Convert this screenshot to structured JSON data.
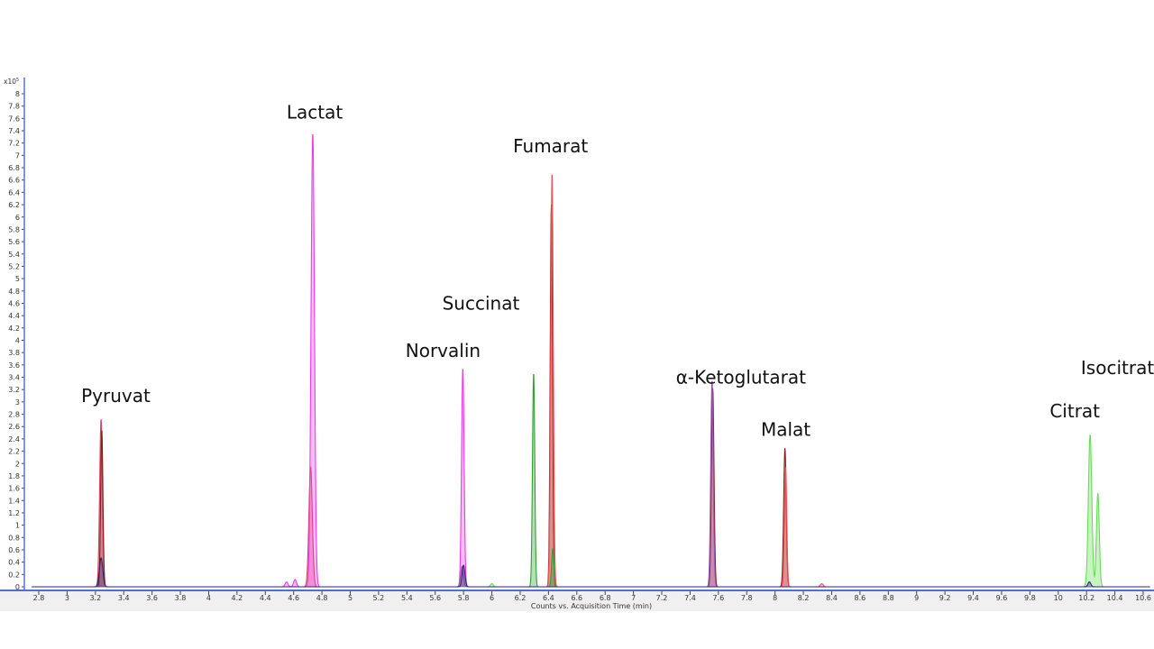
{
  "chart_data": {
    "type": "line",
    "title": "",
    "xlabel": "Counts vs. Acquisition Time (min)",
    "ylabel": "",
    "y_multiplier_label": "x10",
    "y_multiplier_exponent": "5",
    "xlim": [
      2.75,
      10.65
    ],
    "ylim": [
      0,
      8
    ],
    "grid": false,
    "x_ticks": [
      "2.8",
      "3",
      "3.2",
      "3.4",
      "3.6",
      "3.8",
      "4",
      "4.2",
      "4.4",
      "4.6",
      "4.8",
      "5",
      "5.2",
      "5.4",
      "5.6",
      "5.8",
      "6",
      "6.2",
      "6.4",
      "6.6",
      "6.8",
      "7",
      "7.2",
      "7.4",
      "7.6",
      "7.8",
      "8",
      "8.2",
      "8.4",
      "8.6",
      "8.8",
      "9",
      "9.2",
      "9.4",
      "9.6",
      "9.8",
      "10",
      "10.2",
      "10.4",
      "10.6"
    ],
    "y_ticks": [
      "0",
      "0.2",
      "0.4",
      "0.6",
      "0.8",
      "1",
      "1.2",
      "1.4",
      "1.6",
      "1.8",
      "2",
      "2.2",
      "2.4",
      "2.6",
      "2.8",
      "3",
      "3.2",
      "3.4",
      "3.6",
      "3.8",
      "4",
      "4.2",
      "4.4",
      "4.6",
      "4.8",
      "5",
      "5.2",
      "5.4",
      "5.6",
      "5.8",
      "6",
      "6.2",
      "6.4",
      "6.6",
      "6.8",
      "7",
      "7.2",
      "7.4",
      "7.6",
      "7.8",
      "8"
    ],
    "series": [
      {
        "color": "#e04060",
        "peaks": [
          {
            "rt": 3.24,
            "height": 2.72,
            "width": 0.01
          },
          {
            "rt": 4.72,
            "height": 1.95,
            "width": 0.012
          }
        ]
      },
      {
        "color": "#8b1a1a",
        "peaks": [
          {
            "rt": 3.245,
            "height": 2.55,
            "width": 0.008
          },
          {
            "rt": 6.42,
            "height": 6.2,
            "width": 0.008
          },
          {
            "rt": 7.56,
            "height": 3.22,
            "width": 0.009
          },
          {
            "rt": 8.07,
            "height": 2.25,
            "width": 0.009
          }
        ]
      },
      {
        "color": "#e83ee8",
        "peaks": [
          {
            "rt": 4.735,
            "height": 7.36,
            "width": 0.012
          },
          {
            "rt": 5.795,
            "height": 3.55,
            "width": 0.009
          },
          {
            "rt": 4.55,
            "height": 0.08,
            "width": 0.01
          },
          {
            "rt": 4.61,
            "height": 0.12,
            "width": 0.01
          }
        ]
      },
      {
        "color": "#ee5555",
        "peaks": [
          {
            "rt": 6.425,
            "height": 6.72,
            "width": 0.009
          },
          {
            "rt": 8.075,
            "height": 1.95,
            "width": 0.008
          },
          {
            "rt": 8.33,
            "height": 0.05,
            "width": 0.01
          }
        ]
      },
      {
        "color": "#30a030",
        "peaks": [
          {
            "rt": 6.295,
            "height": 3.47,
            "width": 0.008
          },
          {
            "rt": 6.43,
            "height": 0.62,
            "width": 0.008
          }
        ]
      },
      {
        "color": "#66dd55",
        "peaks": [
          {
            "rt": 10.225,
            "height": 2.47,
            "width": 0.012
          },
          {
            "rt": 10.28,
            "height": 1.52,
            "width": 0.01
          },
          {
            "rt": 6.0,
            "height": 0.05,
            "width": 0.01
          }
        ]
      },
      {
        "color": "#9a50b0",
        "peaks": [
          {
            "rt": 7.555,
            "height": 3.35,
            "width": 0.009
          },
          {
            "rt": 5.79,
            "height": 0.33,
            "width": 0.01
          }
        ]
      },
      {
        "color": "#2a2a70",
        "peaks": [
          {
            "rt": 3.24,
            "height": 0.47,
            "width": 0.012
          },
          {
            "rt": 5.8,
            "height": 0.35,
            "width": 0.01
          },
          {
            "rt": 10.22,
            "height": 0.08,
            "width": 0.01
          }
        ]
      }
    ],
    "annotations": [
      {
        "text": "Pyruvat",
        "x": 3.1,
        "y": 3.0
      },
      {
        "text": "Lactat",
        "x": 4.55,
        "y": 7.6
      },
      {
        "text": "Fumarat",
        "x": 6.15,
        "y": 7.05
      },
      {
        "text": "Succinat",
        "x": 5.65,
        "y": 4.5
      },
      {
        "text": "Norvalin",
        "x": 5.39,
        "y": 3.73
      },
      {
        "text": "α-Ketoglutarat",
        "x": 7.3,
        "y": 3.3
      },
      {
        "text": "Malat",
        "x": 7.9,
        "y": 2.45
      },
      {
        "text": "Citrat",
        "x": 9.94,
        "y": 2.75
      },
      {
        "text": "Isocitrat",
        "x": 10.16,
        "y": 3.45
      }
    ]
  }
}
